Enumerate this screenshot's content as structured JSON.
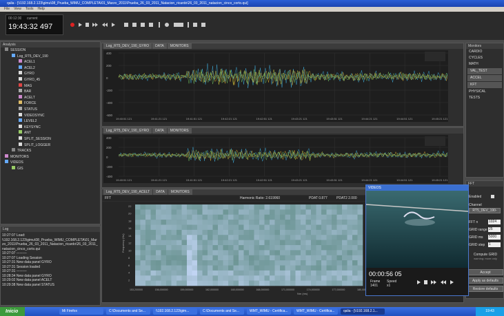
{
  "window": {
    "title": "qalia - [\\\\192.168.2.123\\gimu\\08_Prueba_WIMU_COMPLETA\\01_Marzo_2011\\Prueba_26_03_2011_Natacion_ricardo\\26_03_2011_natacion_cinco_corto.qui]",
    "menu": [
      "File",
      "View",
      "Tools",
      "Help"
    ]
  },
  "toolbar": {
    "clock_small": "00:12:30",
    "clock_label": "current",
    "clock": "19:43:32 497"
  },
  "analysis": {
    "title": "Analysis",
    "items": [
      "SESSION",
      "Log_RT5_DEV_190",
      "ACEL1",
      "ACEL2",
      "GYRO",
      "GYRO_45",
      "MAG",
      "BAR",
      "ACELT",
      "FORCE",
      "STATUS",
      "VIDEOSYNC",
      "LEVEL2",
      "KEYSYNC",
      "ANT",
      "SPLIT_SESSION",
      "SPLIT_LOGGER",
      "TRACKS",
      "MONITORS",
      "VIDEOS",
      "GIS"
    ]
  },
  "log": {
    "title": "Log",
    "lines": [
      "10:27:07 Load:",
      "\\\\192.168.2.123\\gimu\\08_Prueba_WIMU_COMPLETA\\01_Marzo_2011\\Prueba_26_03_2011_Natacion_ricardo\\26_03_2011_natacion_cinco_corto.qui",
      "10:27:07 ---------",
      "10:27:07 Loading Session",
      "10:27:31 New data panel GYRO",
      "10:27:31 Session loaded",
      "10:27:31 ---------",
      "10:28:34 New data panel GYRO",
      "10:29:02 New data panel ACELT",
      "10:29:38 New data panel STATUS"
    ]
  },
  "panels": [
    {
      "tabs": [
        "Log_RT5_DEV_190_GYRO",
        "DATA",
        "MONITORS"
      ],
      "yticks": [
        "400",
        "200",
        "0",
        "-200",
        "-400",
        "-600"
      ],
      "xticks": [
        "19:40:51 121",
        "19:41:21 121",
        "19:41:51 121",
        "19:42:21 121",
        "19:42:51 121",
        "19:43:21 121",
        "19:43:51 121",
        "19:44:21 121",
        "19:44:51 121",
        "19:45:21 121"
      ]
    },
    {
      "tabs": [
        "Log_RT5_DEV_190_GYRO",
        "DATA",
        "MONITORS"
      ],
      "yticks": [
        "400",
        "200",
        "0",
        "-200",
        "-400"
      ],
      "xticks": [
        "19:40:51 121",
        "19:41:21 121",
        "19:41:51 121",
        "19:42:21 121",
        "19:42:51 121",
        "19:43:21 121",
        "19:43:51 121",
        "19:44:21 121",
        "19:44:51 121",
        "19:45:21 121"
      ]
    }
  ],
  "spectrogram": {
    "tabs": [
      "Log_RT5_DEV_190_ACELT",
      "DATA",
      "MONITORS"
    ],
    "fft": "FFT",
    "ratio": "Harmonic Ratio: 2.619060",
    "pdat1": "PDAT 0.877",
    "pdat2": "PDAT2 2.000",
    "yticks": [
      "22",
      "20",
      "18",
      "16",
      "14",
      "12",
      "10",
      "8",
      "6",
      "4",
      "2"
    ],
    "ylabel": "Frequency (Hz)",
    "xlabel": "Nm (ms)",
    "xticks": [
      "153,200000",
      "156,000000",
      "159,000000",
      "162,000000",
      "165,000000",
      "168,000000",
      "171,000000",
      "174,000000",
      "177,000000",
      "180,000000"
    ]
  },
  "video": {
    "title": "VIDEOS",
    "time": "00:00:56 05",
    "frame_label": "Frame",
    "frame": "1401",
    "speed_label": "Speed",
    "speed": "x1"
  },
  "monitors": {
    "title": "Monitors",
    "items": [
      "CARDIO",
      "CYCLES",
      "MATH",
      "VAL_TEST",
      "ACCEL",
      "KFT",
      "PHYSICAL",
      "TESTS"
    ]
  },
  "fft": {
    "title": "FFT",
    "enabled": "Enabled",
    "channel_label": "Channel",
    "channel": "RT5_DEV_190-",
    "fields": [
      {
        "label": "FFT n",
        "value": "1024"
      },
      {
        "label": "GRID range",
        "value": "25"
      },
      {
        "label": "GRID ms",
        "value": "5000"
      },
      {
        "label": "GRID step",
        "value": "1"
      }
    ],
    "compute": "Compute GRID",
    "note": "warning: more only",
    "buttons": [
      "Accept",
      "Apply as defaults",
      "Restore defaults"
    ]
  },
  "taskbar": {
    "start": "Inicio",
    "tasks": [
      "Mi Firefox",
      "C:\\Documents and Se...",
      "\\\\192.168.2.123\\gim...",
      "C:\\Documents and Se...",
      "WMT_WIMU - Certifica...",
      "WMT_WIMU - Certifica...",
      "qalia - [\\\\192.168.2.1..."
    ],
    "clock": "19:43"
  }
}
